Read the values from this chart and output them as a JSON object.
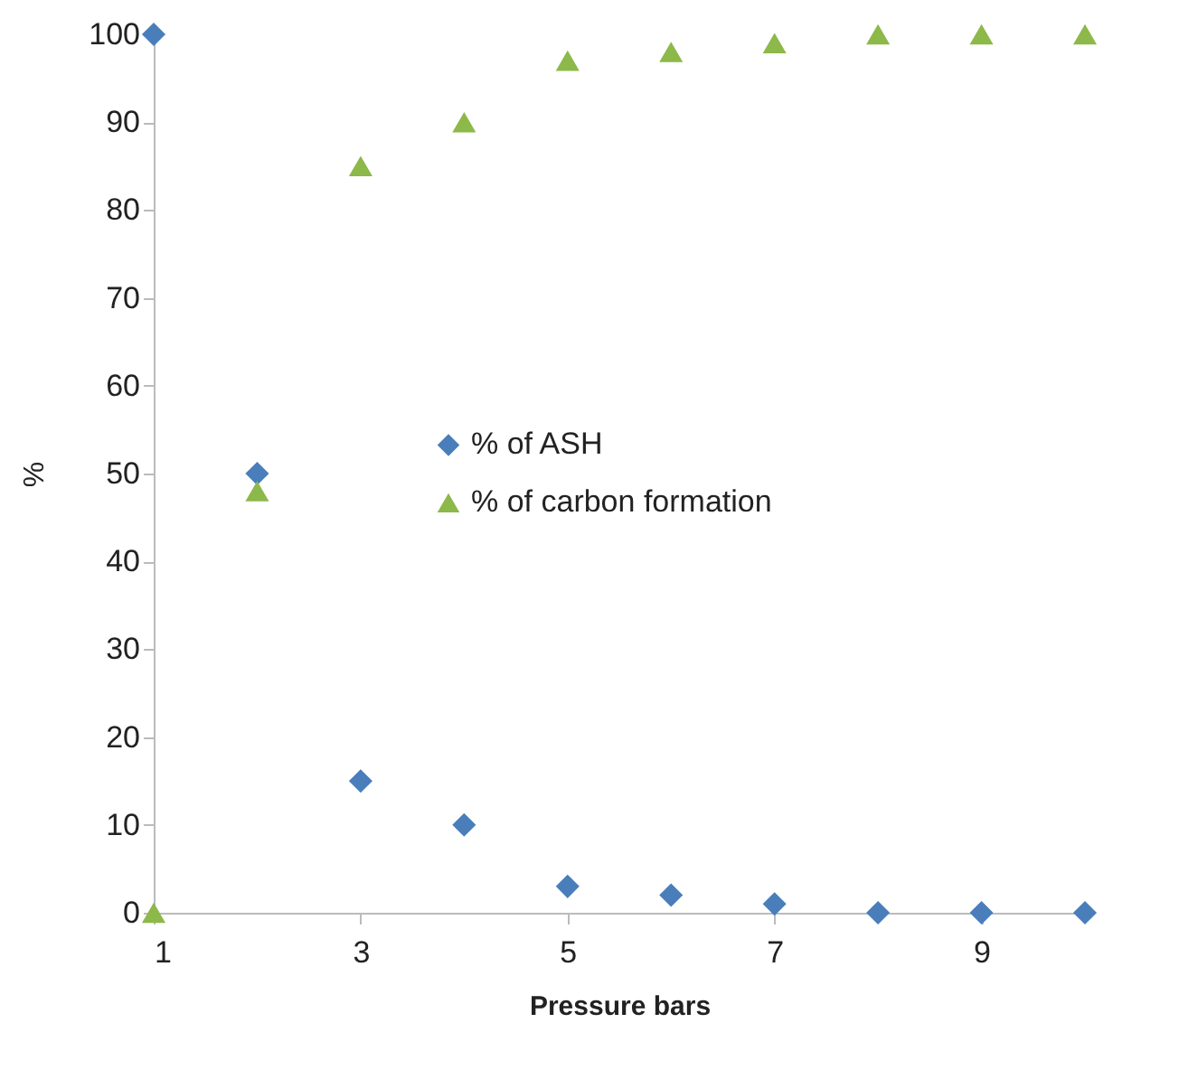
{
  "chart_data": {
    "type": "scatter",
    "xlabel": "Pressure bars",
    "ylabel": "%",
    "x": [
      1,
      2,
      3,
      4,
      5,
      6,
      7,
      8,
      9,
      10
    ],
    "series": [
      {
        "name": "% of ASH",
        "color": "#4a7ebb",
        "marker": "diamond",
        "values": [
          100,
          50,
          15,
          10,
          3,
          2,
          1,
          0,
          0,
          0
        ]
      },
      {
        "name": "% of carbon formation",
        "color": "#8db84a",
        "marker": "triangle",
        "values": [
          0,
          48,
          85,
          90,
          97,
          98,
          99,
          100,
          100,
          100
        ]
      }
    ],
    "xlim": [
      1,
      10
    ],
    "xticks": [
      1,
      3,
      5,
      7,
      9
    ],
    "ylim": [
      0,
      100
    ],
    "yticks": [
      0,
      10,
      20,
      30,
      40,
      50,
      60,
      70,
      80,
      90,
      100
    ],
    "grid": false,
    "legend": "right"
  }
}
